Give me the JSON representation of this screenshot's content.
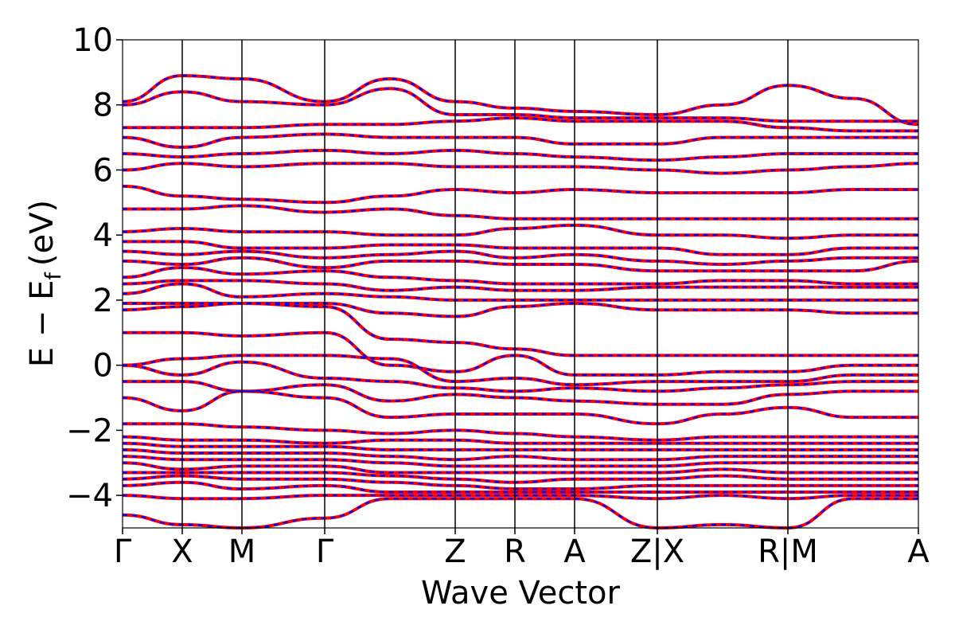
{
  "chart_data": {
    "type": "line",
    "title": "",
    "xlabel": "Wave Vector",
    "ylabel": "E − E",
    "ylabel_sub": "f",
    "ylabel_unit": "(eV)",
    "ylim": [
      -5,
      10
    ],
    "yticks": [
      -4,
      -2,
      0,
      2,
      4,
      6,
      8,
      10
    ],
    "ytick_labels": [
      "−4",
      "−2",
      "0",
      "2",
      "4",
      "6",
      "8",
      "10"
    ],
    "xlim": [
      0,
      1
    ],
    "kpoints": [
      {
        "x": 0.0,
        "label": "Γ"
      },
      {
        "x": 0.075,
        "label": "X"
      },
      {
        "x": 0.15,
        "label": "M"
      },
      {
        "x": 0.254,
        "label": "Γ"
      },
      {
        "x": 0.418,
        "label": "Z"
      },
      {
        "x": 0.493,
        "label": "R"
      },
      {
        "x": 0.568,
        "label": "A"
      },
      {
        "x": 0.672,
        "label": "Z|X"
      },
      {
        "x": 0.836,
        "label": "R|M"
      },
      {
        "x": 1.0,
        "label": "A"
      }
    ],
    "grid": false,
    "legend": "none",
    "band_colors": {
      "series_1": "#ff0000",
      "series_2": "#0000ff"
    },
    "series": [
      {
        "style": "solid",
        "color": "#ff0000",
        "description": "bands (solid red)"
      },
      {
        "style": "dashed",
        "color": "#0000ff",
        "description": "bands (dashed blue)"
      }
    ],
    "bands": [
      [
        -4.6,
        -4.9,
        -5.0,
        -4.7,
        -4.1,
        -4.1,
        -4.1,
        -4.1,
        -5.0,
        -4.9,
        -5.0,
        -4.1,
        -4.1
      ],
      [
        -4.0,
        -4.1,
        -4.1,
        -4.0,
        -4.0,
        -4.0,
        -4.0,
        -4.0,
        -4.1,
        -4.0,
        -4.1,
        -4.0,
        -4.0
      ],
      [
        -3.7,
        -3.6,
        -3.8,
        -3.7,
        -3.9,
        -3.9,
        -3.9,
        -3.9,
        -3.9,
        -3.9,
        -3.9,
        -3.9,
        -3.9
      ],
      [
        -3.5,
        -3.4,
        -3.5,
        -3.5,
        -3.6,
        -3.7,
        -3.8,
        -3.8,
        -3.7,
        -3.7,
        -3.7,
        -3.7,
        -3.7
      ],
      [
        -3.3,
        -3.3,
        -3.3,
        -3.3,
        -3.4,
        -3.5,
        -3.6,
        -3.5,
        -3.5,
        -3.4,
        -3.5,
        -3.5,
        -3.5
      ],
      [
        -3.0,
        -3.2,
        -3.1,
        -3.1,
        -3.3,
        -3.3,
        -3.3,
        -3.3,
        -3.3,
        -3.2,
        -3.3,
        -3.3,
        -3.3
      ],
      [
        -2.8,
        -2.9,
        -2.9,
        -2.9,
        -3.0,
        -3.1,
        -3.1,
        -3.1,
        -3.1,
        -3.0,
        -3.0,
        -3.0,
        -3.0
      ],
      [
        -2.6,
        -2.7,
        -2.7,
        -2.7,
        -2.8,
        -2.9,
        -2.8,
        -2.9,
        -2.9,
        -2.8,
        -2.8,
        -2.8,
        -2.8
      ],
      [
        -2.4,
        -2.5,
        -2.5,
        -2.5,
        -2.6,
        -2.6,
        -2.6,
        -2.6,
        -2.6,
        -2.6,
        -2.6,
        -2.6,
        -2.6
      ],
      [
        -2.2,
        -2.3,
        -2.3,
        -2.4,
        -2.3,
        -2.3,
        -2.4,
        -2.4,
        -2.4,
        -2.4,
        -2.4,
        -2.4,
        -2.4
      ],
      [
        -1.8,
        -1.8,
        -1.9,
        -2.0,
        -2.1,
        -2.0,
        -2.1,
        -2.2,
        -2.3,
        -2.2,
        -2.2,
        -2.2,
        -2.2
      ],
      [
        -1.0,
        -1.4,
        -0.8,
        -1.0,
        -1.6,
        -1.5,
        -1.5,
        -1.5,
        -1.8,
        -1.5,
        -1.3,
        -1.6,
        -1.6
      ],
      [
        -0.5,
        -0.5,
        -0.8,
        -0.6,
        -1.1,
        -0.9,
        -1.0,
        -1.1,
        -1.2,
        -1.2,
        -0.9,
        -0.8,
        -0.8
      ],
      [
        0.0,
        -0.3,
        0.1,
        -0.4,
        -0.5,
        -0.7,
        -0.8,
        -0.7,
        -0.8,
        -0.7,
        -0.6,
        -0.5,
        -0.5
      ],
      [
        0.0,
        0.2,
        0.3,
        0.3,
        0.2,
        -0.5,
        -0.4,
        -0.6,
        -0.5,
        -0.5,
        -0.5,
        -0.3,
        -0.3
      ],
      [
        1.0,
        1.0,
        0.9,
        1.0,
        0.0,
        -0.2,
        0.3,
        -0.3,
        -0.3,
        -0.2,
        -0.2,
        0.0,
        0.0
      ],
      [
        1.7,
        1.8,
        1.9,
        1.8,
        0.8,
        0.7,
        0.5,
        0.3,
        0.3,
        0.3,
        0.3,
        0.3,
        0.3
      ],
      [
        1.9,
        1.9,
        1.9,
        1.9,
        1.6,
        1.5,
        1.8,
        1.9,
        1.7,
        1.7,
        1.7,
        1.6,
        1.6
      ],
      [
        2.2,
        2.5,
        2.1,
        2.2,
        2.1,
        2.0,
        2.0,
        2.0,
        2.0,
        2.0,
        2.0,
        2.0,
        2.0
      ],
      [
        2.5,
        2.6,
        2.6,
        2.5,
        2.3,
        2.4,
        2.3,
        2.3,
        2.4,
        2.4,
        2.4,
        2.4,
        2.4
      ],
      [
        2.7,
        3.0,
        2.8,
        2.9,
        2.7,
        2.6,
        2.5,
        2.5,
        2.5,
        2.6,
        2.6,
        2.5,
        2.5
      ],
      [
        3.2,
        3.1,
        3.3,
        3.0,
        3.2,
        3.2,
        3.1,
        3.1,
        2.9,
        2.9,
        2.9,
        2.9,
        3.2
      ],
      [
        3.5,
        3.4,
        3.5,
        3.3,
        3.4,
        3.5,
        3.3,
        3.4,
        3.2,
        3.1,
        3.2,
        3.3,
        3.3
      ],
      [
        3.8,
        3.8,
        3.6,
        3.6,
        3.7,
        3.7,
        3.6,
        3.6,
        3.6,
        3.4,
        3.4,
        3.6,
        3.6
      ],
      [
        4.1,
        4.2,
        4.1,
        4.1,
        4.0,
        4.0,
        4.2,
        4.3,
        4.0,
        4.0,
        3.9,
        4.0,
        4.0
      ],
      [
        4.8,
        4.8,
        4.9,
        4.7,
        4.8,
        4.6,
        4.5,
        4.5,
        4.5,
        4.5,
        4.5,
        4.5,
        4.5
      ],
      [
        5.5,
        5.2,
        5.1,
        5.0,
        5.2,
        5.4,
        5.3,
        5.4,
        5.3,
        5.3,
        5.3,
        5.4,
        5.4
      ],
      [
        6.0,
        6.2,
        6.1,
        6.2,
        6.2,
        6.1,
        6.1,
        6.1,
        6.0,
        5.9,
        6.0,
        6.1,
        6.2
      ],
      [
        6.5,
        6.4,
        6.5,
        6.6,
        6.5,
        6.6,
        6.5,
        6.4,
        6.3,
        6.4,
        6.5,
        6.5,
        6.5
      ],
      [
        7.0,
        6.7,
        7.0,
        7.1,
        7.0,
        7.0,
        7.0,
        6.8,
        6.8,
        7.0,
        7.0,
        7.0,
        7.0
      ],
      [
        7.3,
        7.3,
        7.3,
        7.4,
        7.4,
        7.5,
        7.6,
        7.5,
        7.5,
        7.5,
        7.3,
        7.2,
        7.2
      ],
      [
        8.0,
        8.4,
        8.1,
        8.0,
        8.5,
        7.7,
        7.7,
        7.6,
        7.6,
        7.6,
        7.5,
        7.5,
        7.5
      ],
      [
        8.1,
        8.9,
        8.8,
        8.1,
        8.8,
        8.1,
        7.9,
        7.8,
        7.7,
        8.0,
        8.6,
        8.2,
        7.4
      ]
    ]
  }
}
